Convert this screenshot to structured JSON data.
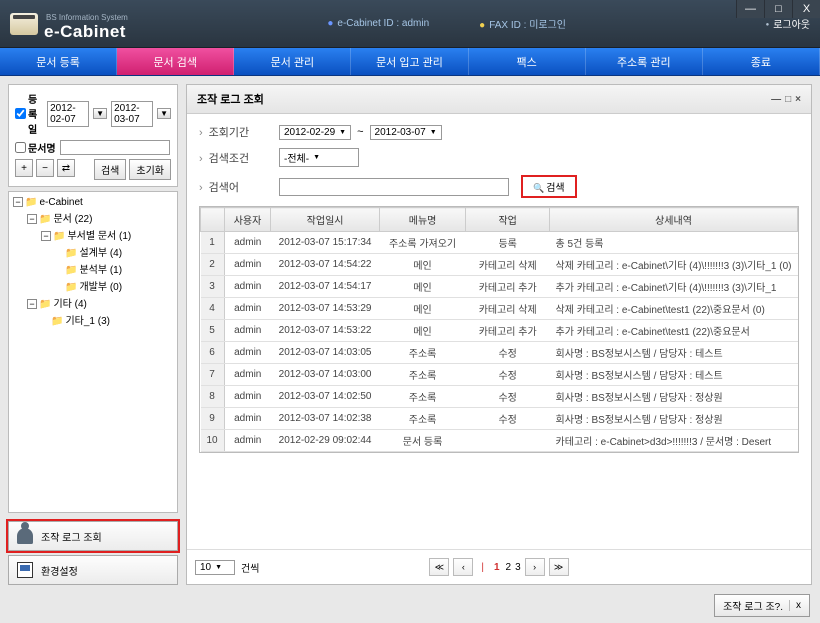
{
  "app": {
    "subtitle": "BS Information System",
    "name": "e-Cabinet",
    "cabinet_id_label": "e-Cabinet ID :",
    "cabinet_id_value": "admin",
    "fax_id_label": "FAX ID :",
    "fax_id_value": "미로그인",
    "logout": "로그아웃"
  },
  "win_controls": {
    "min": "—",
    "max": "□",
    "close": "X"
  },
  "nav": {
    "items": [
      "문서 등록",
      "문서 검색",
      "문서 관리",
      "문서 입고 관리",
      "팩스",
      "주소록 관리",
      "종료"
    ],
    "active_index": 1
  },
  "filter": {
    "reg_label": "등록일",
    "date_from": "2012-02-07",
    "date_to": "2012-03-07",
    "doc_label": "문서명",
    "search_btn": "검색",
    "reset_btn": "초기화",
    "plus": "+",
    "minus": "−",
    "swap": "⇄"
  },
  "tree": {
    "root": "e-Cabinet",
    "n1": "문서 (22)",
    "n1_1": "부서별 문서 (1)",
    "n1_1_1": "설계부 (4)",
    "n1_1_2": "분석부 (1)",
    "n1_1_3": "개발부 (0)",
    "n2": "기타 (4)",
    "n2_1": "기타_1 (3)"
  },
  "side_buttons": {
    "log_view": "조작 로그 조회",
    "settings": "환경설정"
  },
  "panel": {
    "title": "조작 로그 조회",
    "period_label": "조회기간",
    "date_from": "2012-02-29",
    "tilde": "~",
    "date_to": "2012-03-07",
    "cond_label": "검색조건",
    "cond_value": "-전체-",
    "term_label": "검색어",
    "search_btn": "검색",
    "columns": [
      "",
      "사용자",
      "작업일시",
      "메뉴명",
      "작업",
      "상세내역"
    ],
    "rows": [
      {
        "i": "1",
        "user": "admin",
        "ts": "2012-03-07 15:17:34",
        "menu": "주소록 가져오기",
        "op": "등록",
        "detail": "총 5건 등록"
      },
      {
        "i": "2",
        "user": "admin",
        "ts": "2012-03-07 14:54:22",
        "menu": "메인",
        "op": "카테고리 삭제",
        "detail": "삭제 카테고리 : e-Cabinet\\기타 (4)\\!!!!!!!3 (3)\\기타_1 (0)"
      },
      {
        "i": "3",
        "user": "admin",
        "ts": "2012-03-07 14:54:17",
        "menu": "메인",
        "op": "카테고리 추가",
        "detail": "추가 카테고리 : e-Cabinet\\기타 (4)\\!!!!!!!3 (3)\\기타_1"
      },
      {
        "i": "4",
        "user": "admin",
        "ts": "2012-03-07 14:53:29",
        "menu": "메인",
        "op": "카테고리 삭제",
        "detail": "삭제 카테고리 : e-Cabinet\\test1 (22)\\중요문서 (0)"
      },
      {
        "i": "5",
        "user": "admin",
        "ts": "2012-03-07 14:53:22",
        "menu": "메인",
        "op": "카테고리 추가",
        "detail": "추가 카테고리 : e-Cabinet\\test1 (22)\\중요문서"
      },
      {
        "i": "6",
        "user": "admin",
        "ts": "2012-03-07 14:03:05",
        "menu": "주소록",
        "op": "수정",
        "detail": "회사명 : BS정보시스템 / 담당자 : 테스트"
      },
      {
        "i": "7",
        "user": "admin",
        "ts": "2012-03-07 14:03:00",
        "menu": "주소록",
        "op": "수정",
        "detail": "회사명 : BS정보시스템 / 담당자 : 테스트"
      },
      {
        "i": "8",
        "user": "admin",
        "ts": "2012-03-07 14:02:50",
        "menu": "주소록",
        "op": "수정",
        "detail": "회사명 : BS정보시스템 / 담당자 : 정상원"
      },
      {
        "i": "9",
        "user": "admin",
        "ts": "2012-03-07 14:02:38",
        "menu": "주소록",
        "op": "수정",
        "detail": "회사명 : BS정보시스템 / 담당자 : 정상원"
      },
      {
        "i": "10",
        "user": "admin",
        "ts": "2012-02-29 09:02:44",
        "menu": "문서 등록",
        "op": "",
        "detail": "카테고리 : e-Cabinet>d3d>!!!!!!!3 / 문서명 : Desert"
      }
    ],
    "page_size": "10",
    "page_size_label": "건씩",
    "pager": {
      "first": "≪",
      "prev": "‹",
      "sep": "|",
      "cur": "1",
      "p2": "2",
      "p3": "3",
      "next": "›",
      "last": "≫"
    }
  },
  "status": {
    "text": "조작 로그 조?.",
    "close": "x"
  }
}
